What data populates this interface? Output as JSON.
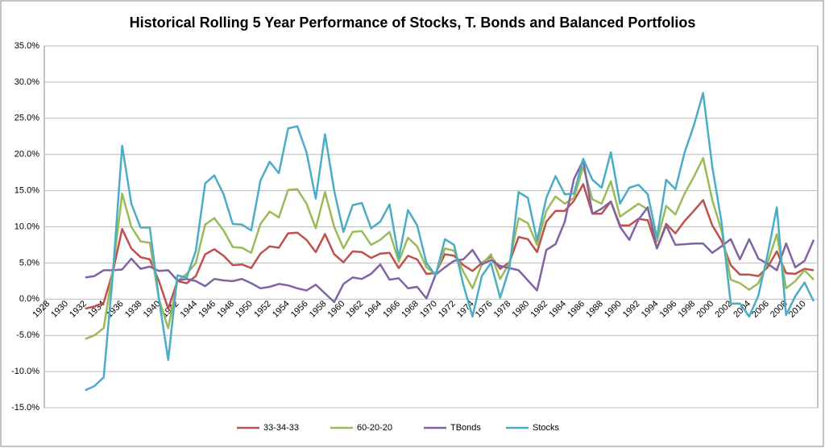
{
  "chart_data": {
    "type": "line",
    "title": "Historical  Rolling 5 Year Performance of Stocks, T. Bonds and Balanced Portfolios",
    "categories": [
      "1928",
      null,
      "1930",
      null,
      "1932",
      null,
      "1934",
      null,
      "1936",
      null,
      "1938",
      null,
      "1940",
      null,
      "1942",
      null,
      "1944",
      null,
      "1946",
      null,
      "1948",
      null,
      "1950",
      null,
      "1952",
      null,
      "1954",
      null,
      "1956",
      null,
      "1958",
      null,
      "1960",
      null,
      "1962",
      null,
      "1964",
      null,
      "1966",
      null,
      "1968",
      null,
      "1970",
      null,
      "1972",
      null,
      "1974",
      null,
      "1976",
      null,
      "1978",
      null,
      "1980",
      null,
      "1982",
      null,
      "1984",
      null,
      "1986",
      null,
      "1988",
      null,
      "1990",
      null,
      "1992",
      null,
      "1994",
      null,
      "1996",
      null,
      "1998",
      null,
      "2000",
      null,
      "2002",
      null,
      "2004",
      null,
      "2006",
      null,
      "2008",
      null,
      "2010",
      null
    ],
    "series": [
      {
        "name": "33-34-33",
        "color": "#c0504d",
        "values": [
          null,
          null,
          null,
          null,
          -1.3,
          -1,
          -0.5,
          3.8,
          9.7,
          7,
          5.8,
          5.5,
          2.5,
          -1.3,
          2.5,
          2.2,
          3.2,
          6.2,
          6.9,
          6,
          4.7,
          4.8,
          4.3,
          6.3,
          7.3,
          7.1,
          9.1,
          9.2,
          8.2,
          6.5,
          9,
          6.2,
          5.1,
          6.6,
          6.5,
          5.7,
          6.3,
          6.4,
          4.3,
          6,
          5.5,
          3.5,
          3.6,
          6.2,
          6,
          4.7,
          3.9,
          5,
          5.9,
          4.2,
          5.1,
          8.6,
          8.3,
          6.5,
          10.7,
          12.2,
          12.2,
          13.6,
          15.9,
          11.8,
          11.8,
          13.5,
          10.2,
          10.2,
          11.1,
          10.9,
          7,
          10.4,
          9.1,
          10.8,
          12.2,
          13.7,
          10.2,
          8.1,
          4.7,
          3.4,
          3.4,
          3.2,
          4.4,
          6.6,
          3.6,
          3.5,
          4.2,
          4
        ]
      },
      {
        "name": "60-20-20",
        "color": "#9bbb59",
        "values": [
          null,
          null,
          null,
          null,
          -5.5,
          -5,
          -4,
          4,
          14.6,
          10,
          8,
          7.8,
          0,
          -4,
          2.5,
          3.5,
          5,
          10.3,
          11.2,
          9.5,
          7.2,
          7.1,
          6.4,
          10.4,
          12.1,
          11.3,
          15.1,
          15.2,
          13.2,
          9.8,
          14.8,
          10,
          7,
          9.3,
          9.4,
          7.5,
          8.2,
          9.3,
          5.2,
          8.5,
          7.3,
          4.4,
          3.5,
          7,
          6.7,
          3.8,
          1.5,
          4.8,
          6.2,
          2.8,
          5,
          11.2,
          10.5,
          7.5,
          12.2,
          14.2,
          13.2,
          14,
          18.3,
          13.8,
          13.2,
          16.3,
          11.4,
          12.3,
          13.2,
          12.4,
          8,
          12.9,
          11.7,
          14.6,
          16.9,
          19.5,
          13.7,
          9.5,
          2.7,
          2.2,
          1.3,
          2.2,
          5,
          9,
          1.5,
          2.5,
          4,
          2.7
        ]
      },
      {
        "name": "TBonds",
        "color": "#8064a2",
        "values": [
          null,
          null,
          null,
          null,
          3,
          3.2,
          4,
          4,
          4.1,
          5.6,
          4.2,
          4.5,
          3.9,
          4,
          2.6,
          2.8,
          2.5,
          1.8,
          2.8,
          2.6,
          2.5,
          2.8,
          2.2,
          1.5,
          1.7,
          2.1,
          1.9,
          1.5,
          1.2,
          2,
          0.8,
          -0.4,
          2.1,
          3,
          2.8,
          3.5,
          4.8,
          2.7,
          2.9,
          1.5,
          1.7,
          0.1,
          3.4,
          4.4,
          5.3,
          5.5,
          6.8,
          4.8,
          5.4,
          4.6,
          4.3,
          4,
          2.6,
          1.2,
          6.8,
          7.6,
          10.7,
          16.6,
          19.2,
          11.8,
          12.5,
          13.5,
          10,
          8.2,
          11,
          12.7,
          7,
          10.2,
          7.5,
          7.6,
          7.7,
          7.7,
          6.4,
          7.3,
          8.3,
          5.5,
          8.3,
          5.6,
          4.9,
          4,
          7.7,
          4.4,
          5.3,
          8.2
        ]
      },
      {
        "name": "Stocks",
        "color": "#4bacc6",
        "values": [
          null,
          null,
          null,
          null,
          -12.6,
          -12,
          -10.8,
          3.5,
          21.2,
          13.2,
          9.9,
          9.9,
          0,
          -8.4,
          3.3,
          3,
          6.7,
          16,
          17.1,
          14.5,
          10.4,
          10.3,
          9.5,
          16.4,
          19,
          17.4,
          23.6,
          23.9,
          20.3,
          13.9,
          22.8,
          15,
          9.3,
          13,
          13.3,
          9.8,
          10.7,
          13.1,
          5.7,
          12.3,
          10.2,
          5,
          3.3,
          8.3,
          7.5,
          2,
          -2.4,
          3.2,
          5,
          0.2,
          4.3,
          14.8,
          14,
          8.1,
          14,
          17,
          14.5,
          14.6,
          19.4,
          16.5,
          15.4,
          20.3,
          13.2,
          15.4,
          15.8,
          14.5,
          8.5,
          16.5,
          15.2,
          20.3,
          24,
          28.5,
          18.3,
          10.7,
          -0.6,
          -0.6,
          -2.4,
          0.5,
          6.2,
          12.7,
          -2.2,
          0.4,
          2.3,
          -0.3
        ]
      }
    ],
    "ylim": [
      -15,
      35
    ],
    "yticks": [
      {
        "value": -15,
        "label": "-15.0%"
      },
      {
        "value": -10,
        "label": "-10.0%"
      },
      {
        "value": -5,
        "label": "-5.0%"
      },
      {
        "value": 0,
        "label": "0.0%"
      },
      {
        "value": 5,
        "label": "5.0%"
      },
      {
        "value": 10,
        "label": "10.0%"
      },
      {
        "value": 15,
        "label": "15.0%"
      },
      {
        "value": 20,
        "label": "20.0%"
      },
      {
        "value": 25,
        "label": "25.0%"
      },
      {
        "value": 30,
        "label": "30.0%"
      },
      {
        "value": 35,
        "label": "35.0%"
      }
    ],
    "grid": true,
    "legend": "bottom"
  }
}
